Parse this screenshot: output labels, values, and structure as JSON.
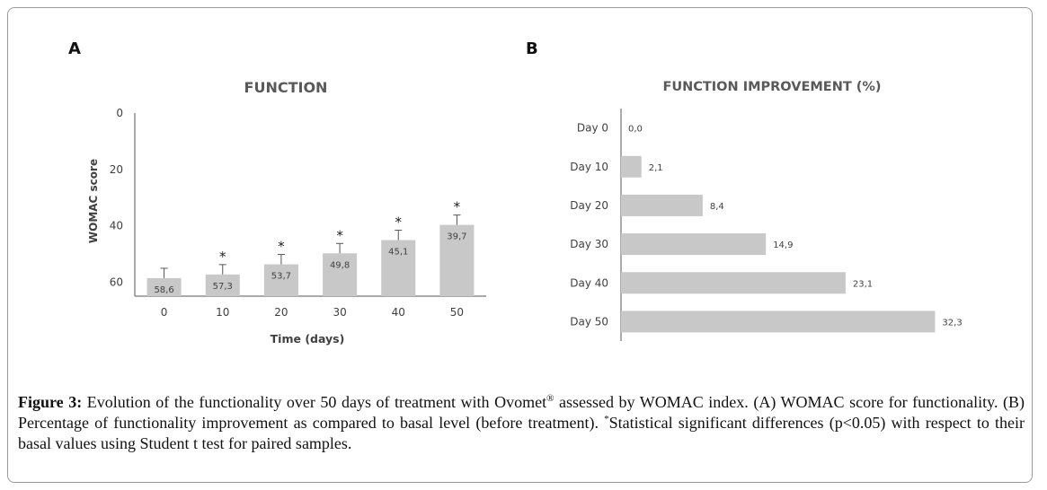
{
  "figure": {
    "panel_a_label": "A",
    "panel_b_label": "B",
    "caption": {
      "label": "Figure 3:",
      "text_1": " Evolution of the functionality over 50 days of treatment with Ovomet",
      "registered": "®",
      "text_2": " assessed by WOMAC index. (A) WOMAC score for functionality. (B) Percentage of functionality improvement as compared to basal level (before treatment). ",
      "asterisk": "*",
      "text_3": "Statistical significant differences (p<0.05) with respect to their basal values using Student t test for paired samples."
    }
  },
  "chart_data": [
    {
      "type": "bar",
      "title": "FUNCTION",
      "xlabel": "Time (days)",
      "ylabel": "WOMAC score",
      "categories": [
        "0",
        "10",
        "20",
        "30",
        "40",
        "50"
      ],
      "values": [
        58.6,
        57.3,
        53.7,
        49.8,
        45.1,
        39.7
      ],
      "value_labels": [
        "58,6",
        "57,3",
        "53,7",
        "49,8",
        "45,1",
        "39,7"
      ],
      "ylim": [
        0,
        65
      ],
      "y_inverted": true,
      "yticks": [
        "0",
        "20",
        "40",
        "60"
      ],
      "ytick_values": [
        0,
        20,
        40,
        60
      ],
      "error_bars": [
        3.5,
        3.5,
        3.5,
        3.5,
        3.5,
        3.5
      ],
      "significance": [
        "",
        "*",
        "*",
        "*",
        "*",
        "*"
      ],
      "bar_color": "#c8c8c8",
      "grid": false
    },
    {
      "type": "bar",
      "orientation": "horizontal",
      "title": "FUNCTION IMPROVEMENT (%)",
      "categories": [
        "Day 0",
        "Day 10",
        "Day 20",
        "Day 30",
        "Day 40",
        "Day 50"
      ],
      "values": [
        0.0,
        2.1,
        8.4,
        14.9,
        23.1,
        32.3
      ],
      "value_labels": [
        "0,0",
        "2,1",
        "8,4",
        "14,9",
        "23,1",
        "32,3"
      ],
      "xlim": [
        0,
        33
      ],
      "bar_color": "#c8c8c8",
      "grid": false
    }
  ]
}
